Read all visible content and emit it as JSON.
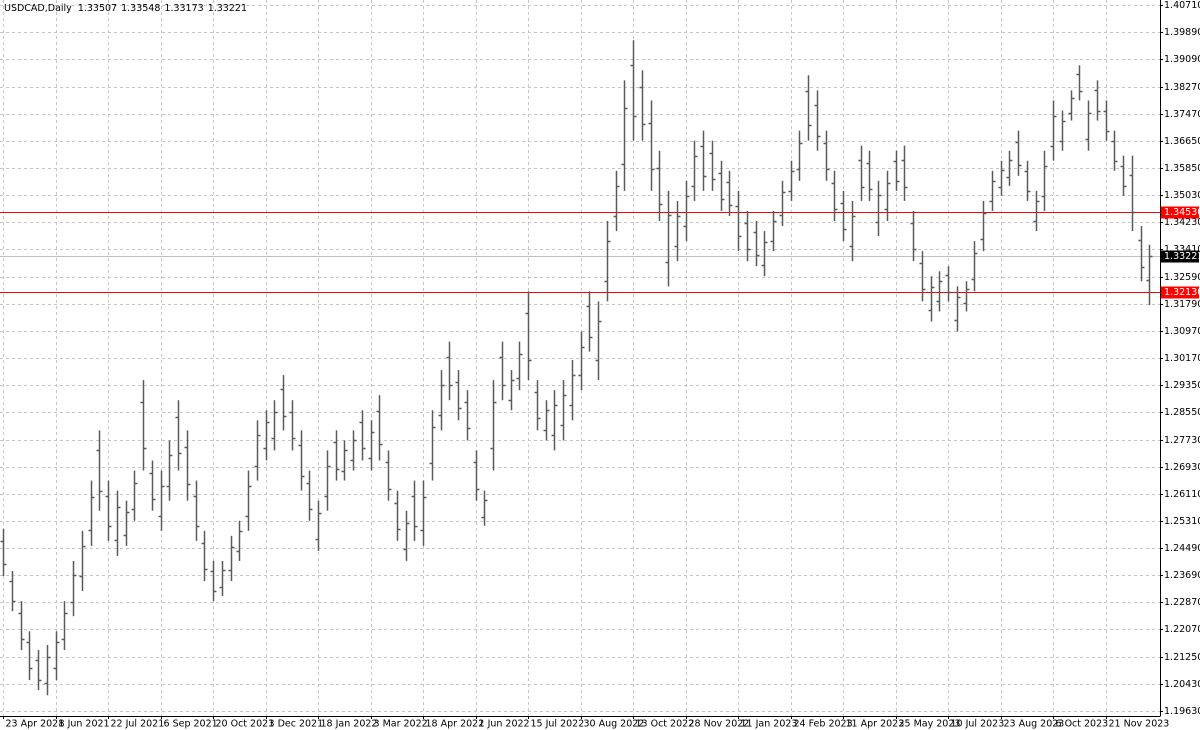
{
  "chart_data": {
    "type": "ohlc",
    "title": "USDCAD,Daily",
    "last_quote": [
      1.33507,
      1.33548,
      1.33173,
      1.33221
    ],
    "color": "#5a5a5a",
    "grid": true,
    "ylim": [
      1.1948,
      1.4086
    ],
    "yticks": [
      {
        "value": 1.1963,
        "label": "1.19630"
      },
      {
        "value": 1.2043,
        "label": "1.20430"
      },
      {
        "value": 1.2125,
        "label": "1.21250"
      },
      {
        "value": 1.2207,
        "label": "1.22070"
      },
      {
        "value": 1.2287,
        "label": "1.22870"
      },
      {
        "value": 1.2369,
        "label": "1.23690"
      },
      {
        "value": 1.2449,
        "label": "1.24490"
      },
      {
        "value": 1.2531,
        "label": "1.25310"
      },
      {
        "value": 1.2611,
        "label": "1.26110"
      },
      {
        "value": 1.2693,
        "label": "1.26930"
      },
      {
        "value": 1.2773,
        "label": "1.27730"
      },
      {
        "value": 1.2855,
        "label": "1.28550"
      },
      {
        "value": 1.2935,
        "label": "1.29350"
      },
      {
        "value": 1.3017,
        "label": "1.30170"
      },
      {
        "value": 1.3097,
        "label": "1.30970"
      },
      {
        "value": 1.3179,
        "label": "1.31790"
      },
      {
        "value": 1.3259,
        "label": "1.32590"
      },
      {
        "value": 1.3341,
        "label": "1.33410"
      },
      {
        "value": 1.3423,
        "label": "1.34230"
      },
      {
        "value": 1.3503,
        "label": "1.35030"
      },
      {
        "value": 1.3585,
        "label": "1.35850"
      },
      {
        "value": 1.3665,
        "label": "1.36650"
      },
      {
        "value": 1.3747,
        "label": "1.37470"
      },
      {
        "value": 1.3827,
        "label": "1.38270"
      },
      {
        "value": 1.3909,
        "label": "1.39090"
      },
      {
        "value": 1.3989,
        "label": "1.39890"
      },
      {
        "value": 1.4071,
        "label": "1.40710"
      }
    ],
    "hlines": [
      {
        "value": 1.3453,
        "label": "1.34530",
        "color": "#ff0000"
      },
      {
        "value": 1.3213,
        "label": "1.32130",
        "color": "#ff0000"
      }
    ],
    "price_line": {
      "value": 1.33221,
      "color": "#c0c0c0"
    },
    "categories": [
      "23 Apr 2021",
      null,
      null,
      null,
      null,
      null,
      "8 Jun 2021",
      null,
      null,
      null,
      null,
      null,
      "22 Jul 2021",
      null,
      null,
      null,
      null,
      null,
      "6 Sep 2021",
      null,
      null,
      null,
      null,
      null,
      "20 Oct 2021",
      null,
      null,
      null,
      null,
      null,
      "3 Dec 2021",
      null,
      null,
      null,
      null,
      null,
      "18 Jan 2022",
      null,
      null,
      null,
      null,
      null,
      "3 Mar 2022",
      null,
      null,
      null,
      null,
      null,
      "18 Apr 2022",
      null,
      null,
      null,
      null,
      null,
      "1 Jun 2022",
      null,
      null,
      null,
      null,
      null,
      "15 Jul 2022",
      null,
      null,
      null,
      null,
      null,
      "30 Aug 2022",
      null,
      null,
      null,
      null,
      null,
      "13 Oct 2022",
      null,
      null,
      null,
      null,
      null,
      "28 Nov 2022",
      null,
      null,
      null,
      null,
      null,
      "11 Jan 2023",
      null,
      null,
      null,
      null,
      null,
      "24 Feb 2023",
      null,
      null,
      null,
      null,
      null,
      "11 Apr 2023",
      null,
      null,
      null,
      null,
      null,
      "25 May 2023",
      null,
      null,
      null,
      null,
      null,
      "10 Jul 2023",
      null,
      null,
      null,
      null,
      null,
      "23 Aug 2023",
      null,
      null,
      null,
      null,
      null,
      "6 Oct 2023",
      null,
      null,
      null,
      null,
      null,
      "21 Nov 2023",
      null,
      null,
      null,
      null,
      null
    ],
    "open": [
      1.2471,
      1.2351,
      1.2255,
      1.2169,
      1.2115,
      1.2046,
      1.2091,
      1.2177,
      1.2288,
      1.2366,
      1.2504,
      1.2741,
      1.2606,
      1.2474,
      1.2489,
      1.2567,
      1.2885,
      1.2675,
      1.2546,
      1.2636,
      1.284,
      1.275,
      1.2606,
      1.2465,
      1.2381,
      1.2333,
      1.2384,
      1.2441,
      1.2546,
      1.2696,
      1.2747,
      1.2777,
      1.2924,
      1.2855,
      1.2756,
      1.2645,
      1.2477,
      1.2606,
      1.2765,
      1.2681,
      1.2711,
      1.2825,
      1.2717,
      1.2858,
      1.2705,
      1.2585,
      1.2447,
      1.2606,
      1.2504,
      1.2702,
      1.2846,
      1.3021,
      1.2945,
      1.2885,
      1.2705,
      1.2543,
      1.2747,
      1.3021,
      1.2891,
      1.2957,
      1.315,
      1.2915,
      1.2801,
      1.2786,
      1.2816,
      1.2876,
      1.2966,
      1.3171,
      1.3011,
      1.3246,
      1.3441,
      1.3597,
      1.3891,
      1.3825,
      1.372,
      1.3585,
      1.3303,
      1.3351,
      1.3411,
      1.3531,
      1.3651,
      1.363,
      1.357,
      1.3543,
      1.3471,
      1.342,
      1.3393,
      1.3294,
      1.3366,
      1.3444,
      1.3516,
      1.3582,
      1.3813,
      1.3771,
      1.366,
      1.354,
      1.348,
      1.3351,
      1.3609,
      1.36,
      1.3423,
      1.3462,
      1.3606,
      1.3609,
      1.342,
      1.33,
      1.3159,
      1.3186,
      1.3264,
      1.3129,
      1.318,
      1.3252,
      1.3372,
      1.3486,
      1.3528,
      1.3558,
      1.3663,
      1.3576,
      1.3426,
      1.3501,
      1.3651,
      1.3666,
      1.375,
      1.3864,
      1.3672,
      1.3816,
      1.3756,
      1.3666,
      1.3591,
      1.3564,
      1.3369,
      1.325
    ],
    "high": [
      1.2507,
      1.2381,
      1.2291,
      1.2201,
      1.2145,
      1.216,
      1.2201,
      1.2291,
      1.2411,
      1.2501,
      1.2651,
      1.2801,
      1.2651,
      1.2621,
      1.2591,
      1.2681,
      1.2951,
      1.2711,
      1.2681,
      1.2771,
      1.2891,
      1.2801,
      1.2651,
      1.2501,
      1.2411,
      1.2411,
      1.2486,
      1.2531,
      1.2681,
      1.2831,
      1.2861,
      1.2891,
      1.2966,
      1.2891,
      1.2801,
      1.2681,
      1.2591,
      1.2741,
      1.2801,
      1.2771,
      1.2801,
      1.2861,
      1.2831,
      1.2906,
      1.2741,
      1.2621,
      1.2561,
      1.2651,
      1.2651,
      1.2861,
      1.2981,
      1.3066,
      1.2981,
      1.2921,
      1.2741,
      1.2621,
      1.2951,
      1.3066,
      1.2981,
      1.3066,
      1.3216,
      1.2951,
      1.2891,
      1.2921,
      1.2951,
      1.3011,
      1.3096,
      1.3216,
      1.3186,
      1.3426,
      1.3576,
      1.3846,
      1.3966,
      1.3876,
      1.3786,
      1.3636,
      1.3516,
      1.3486,
      1.3546,
      1.3666,
      1.3696,
      1.3666,
      1.3606,
      1.3576,
      1.3516,
      1.3456,
      1.3426,
      1.3396,
      1.3456,
      1.3546,
      1.3606,
      1.3696,
      1.3861,
      1.3816,
      1.3696,
      1.3576,
      1.3516,
      1.3486,
      1.3651,
      1.3636,
      1.3546,
      1.3576,
      1.3636,
      1.3651,
      1.3456,
      1.3336,
      1.3261,
      1.3276,
      1.3291,
      1.3231,
      1.3246,
      1.3366,
      1.3486,
      1.3576,
      1.3606,
      1.3636,
      1.3696,
      1.3606,
      1.3516,
      1.3636,
      1.3786,
      1.3756,
      1.3816,
      1.3891,
      1.3786,
      1.3846,
      1.3786,
      1.3696,
      1.3621,
      1.3621,
      1.3411,
      1.3355
    ],
    "low": [
      1.2366,
      1.2261,
      1.2145,
      1.2055,
      1.2025,
      1.201,
      1.2055,
      1.2145,
      1.2246,
      1.2321,
      1.2456,
      1.2561,
      1.2471,
      1.2426,
      1.2456,
      1.2531,
      1.2681,
      1.2561,
      1.2501,
      1.2591,
      1.2681,
      1.2591,
      1.2471,
      1.2351,
      1.2291,
      1.2306,
      1.2351,
      1.2411,
      1.2501,
      1.2651,
      1.2711,
      1.2741,
      1.2801,
      1.2741,
      1.2621,
      1.2531,
      1.2441,
      1.2561,
      1.2651,
      1.2651,
      1.2681,
      1.2711,
      1.2681,
      1.2711,
      1.2591,
      1.2471,
      1.2411,
      1.2471,
      1.2456,
      1.2651,
      1.2801,
      1.2891,
      1.2831,
      1.2771,
      1.2591,
      1.2516,
      1.2681,
      1.2891,
      1.2861,
      1.2921,
      1.2951,
      1.2801,
      1.2771,
      1.2741,
      1.2771,
      1.2831,
      1.2921,
      1.3036,
      1.2951,
      1.3186,
      1.3396,
      1.3516,
      1.3666,
      1.3666,
      1.3516,
      1.3426,
      1.3231,
      1.3306,
      1.3366,
      1.3486,
      1.3516,
      1.3516,
      1.3456,
      1.3441,
      1.3336,
      1.3306,
      1.3291,
      1.3261,
      1.3336,
      1.3411,
      1.3486,
      1.3546,
      1.3666,
      1.3636,
      1.3546,
      1.3426,
      1.3366,
      1.3306,
      1.3486,
      1.3486,
      1.3381,
      1.3426,
      1.3516,
      1.3486,
      1.3306,
      1.3186,
      1.3126,
      1.3156,
      1.3186,
      1.3096,
      1.3156,
      1.3216,
      1.3336,
      1.3456,
      1.3501,
      1.3531,
      1.3561,
      1.3486,
      1.3396,
      1.3456,
      1.3606,
      1.3636,
      1.3726,
      1.3786,
      1.3636,
      1.3726,
      1.3666,
      1.3576,
      1.3501,
      1.3396,
      1.3246,
      1.3175
    ],
    "close": [
      1.2402,
      1.2291,
      1.2177,
      1.2091,
      1.2055,
      1.2124,
      1.2169,
      1.2255,
      1.2369,
      1.2456,
      1.2603,
      1.2621,
      1.2516,
      1.2573,
      1.2558,
      1.2645,
      1.2747,
      1.2597,
      1.2636,
      1.2726,
      1.2732,
      1.2642,
      1.2516,
      1.2387,
      1.2321,
      1.2384,
      1.2453,
      1.2501,
      1.2636,
      1.2786,
      1.2825,
      1.2855,
      1.2843,
      1.2777,
      1.2666,
      1.2567,
      1.2555,
      1.2696,
      1.2687,
      1.2741,
      1.2771,
      1.2747,
      1.2795,
      1.2759,
      1.2627,
      1.2507,
      1.2525,
      1.2516,
      1.2603,
      1.281,
      1.2936,
      1.2936,
      1.2867,
      1.2807,
      1.2627,
      1.2594,
      1.2885,
      1.2936,
      1.2951,
      1.303,
      1.3012,
      1.2837,
      1.2861,
      1.2876,
      1.2906,
      1.2966,
      1.3051,
      1.3081,
      1.3126,
      1.3366,
      1.3531,
      1.3765,
      1.3741,
      1.3717,
      1.3582,
      1.3477,
      1.3444,
      1.3441,
      1.3501,
      1.3621,
      1.3561,
      1.3552,
      1.3492,
      1.3474,
      1.3381,
      1.3342,
      1.3324,
      1.3363,
      1.3426,
      1.3513,
      1.3576,
      1.366,
      1.3714,
      1.3681,
      1.3582,
      1.3462,
      1.3402,
      1.3441,
      1.3528,
      1.3522,
      1.3504,
      1.354,
      1.3546,
      1.3528,
      1.3342,
      1.3222,
      1.3228,
      1.3246,
      1.3213,
      1.3198,
      1.3222,
      1.333,
      1.345,
      1.3546,
      1.3579,
      1.3609,
      1.3594,
      1.3516,
      1.3486,
      1.3591,
      1.3741,
      1.3726,
      1.3792,
      1.3813,
      1.375,
      1.3756,
      1.3696,
      1.3606,
      1.3531,
      1.3453,
      1.3288,
      1.3322
    ]
  }
}
